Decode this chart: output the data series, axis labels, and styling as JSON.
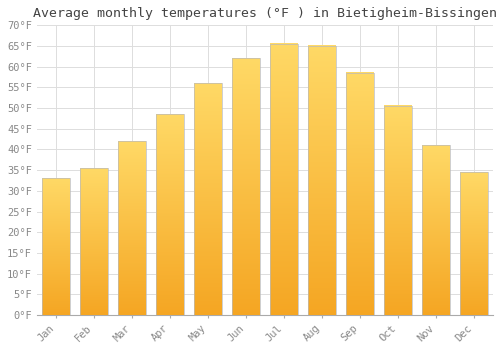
{
  "title": "Average monthly temperatures (°F ) in Bietigheim-Bissingen",
  "months": [
    "Jan",
    "Feb",
    "Mar",
    "Apr",
    "May",
    "Jun",
    "Jul",
    "Aug",
    "Sep",
    "Oct",
    "Nov",
    "Dec"
  ],
  "values": [
    33,
    35.5,
    42,
    48.5,
    56,
    62,
    65.5,
    65,
    58.5,
    50.5,
    41,
    34.5
  ],
  "bar_color_bottom": "#F5A623",
  "bar_color_top": "#FFD966",
  "bar_edge_color": "#BBBBBB",
  "background_color": "#FFFFFF",
  "grid_color": "#DDDDDD",
  "ylim": [
    0,
    70
  ],
  "yticks": [
    0,
    5,
    10,
    15,
    20,
    25,
    30,
    35,
    40,
    45,
    50,
    55,
    60,
    65,
    70
  ],
  "ytick_labels": [
    "0°F",
    "5°F",
    "10°F",
    "15°F",
    "20°F",
    "25°F",
    "30°F",
    "35°F",
    "40°F",
    "45°F",
    "50°F",
    "55°F",
    "60°F",
    "65°F",
    "70°F"
  ],
  "title_fontsize": 9.5,
  "tick_fontsize": 7.5,
  "font_family": "monospace"
}
